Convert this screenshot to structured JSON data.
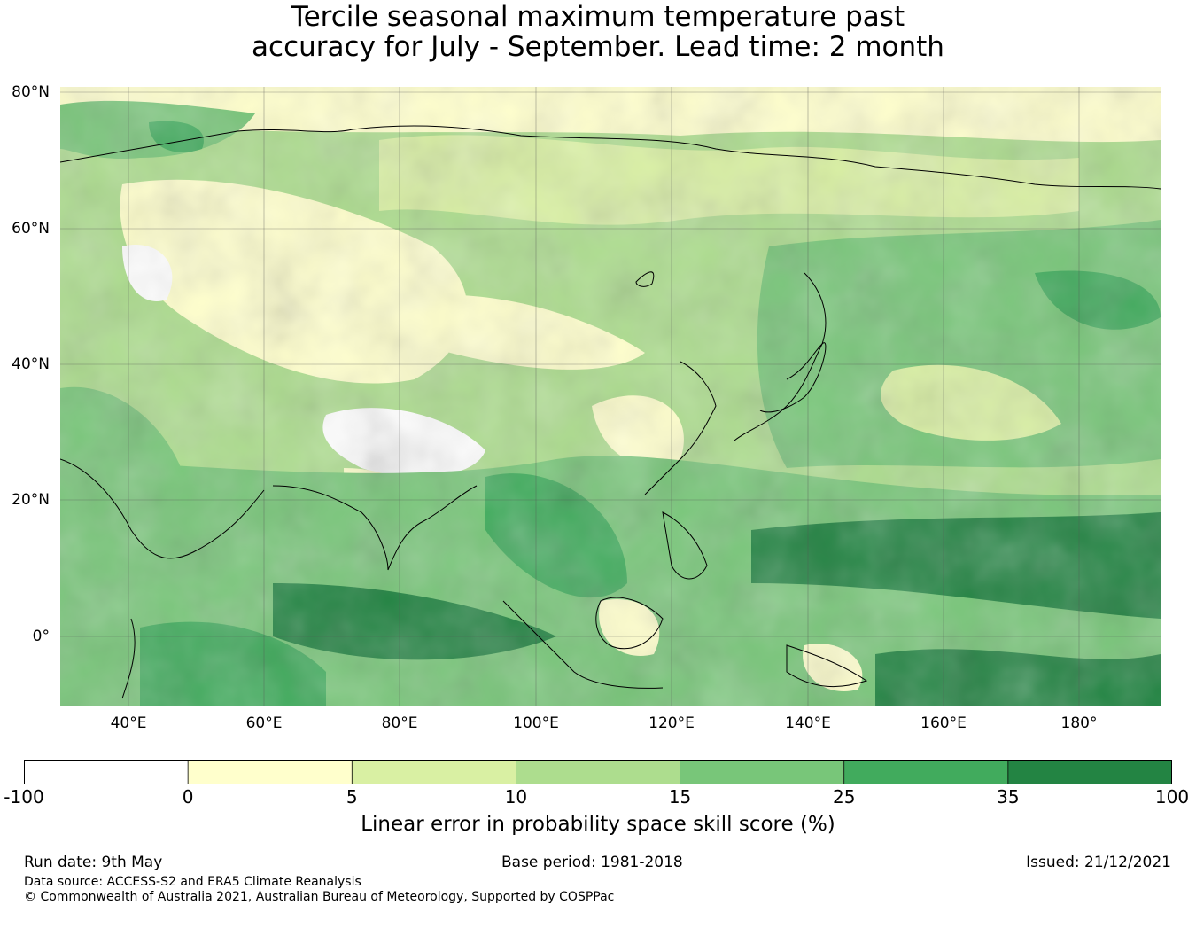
{
  "title": {
    "line1": "Tercile seasonal maximum temperature past",
    "line2": "accuracy for July - September. Lead time: 2 month"
  },
  "map": {
    "lat_labels": [
      "80°N",
      "60°N",
      "40°N",
      "20°N",
      "0°"
    ],
    "lon_labels": [
      "40°E",
      "60°E",
      "80°E",
      "100°E",
      "120°E",
      "140°E",
      "160°E",
      "180°"
    ],
    "lat_range": [
      -10,
      80
    ],
    "lon_range": [
      30,
      192
    ],
    "gridlines": true,
    "colors": {
      "-100_0": "#ffffff",
      "0_5": "#ffffcc",
      "5_10": "#d9f0a3",
      "10_15": "#addd8e",
      "15_25": "#78c679",
      "25_35": "#41ab5d",
      "35_100": "#238443"
    }
  },
  "colorbar": {
    "ticks": [
      "-100",
      "0",
      "5",
      "10",
      "15",
      "25",
      "35",
      "100"
    ],
    "colors": [
      "#ffffff",
      "#ffffcc",
      "#d9f0a3",
      "#addd8e",
      "#78c679",
      "#41ab5d",
      "#238443"
    ],
    "label": "Linear error in probability space skill score (%)"
  },
  "footer": {
    "run_date": "Run date: 9th May",
    "base_period": "Base period: 1981-2018",
    "issued": "Issued: 21/12/2021",
    "data_source": "Data source: ACCESS-S2 and ERA5 Climate Reanalysis",
    "copyright": "© Commonwealth of Australia 2021, Australian Bureau of Meteorology, Supported by COSPPac"
  }
}
